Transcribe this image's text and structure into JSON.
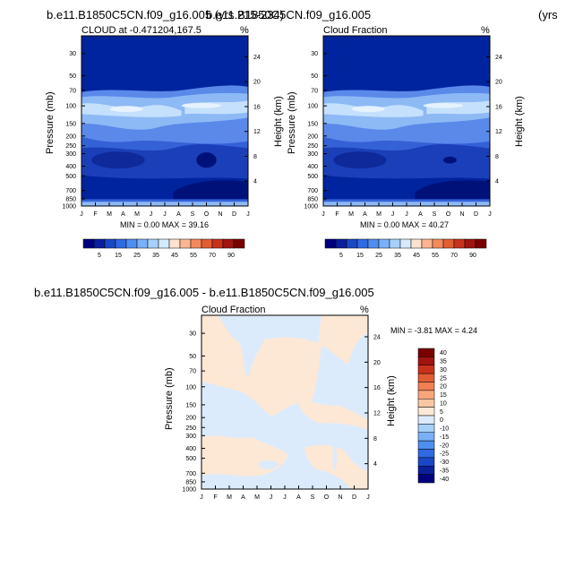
{
  "page": {
    "title_left": "b.e11.B1850C5CN.f09_g16.005 (yrs 215-234)",
    "title_mid": "b.e11.B1850C5CN.f09_g16.005",
    "title_right_fragment": "(yrs",
    "title_diff": "b.e11.B1850C5CN.f09_g16.005 - b.e11.B1850C5CN.f09_g16.005"
  },
  "colors": {
    "base_blue": "#00249e",
    "scale": [
      "#00007f",
      "#0b1f9c",
      "#1a47c6",
      "#2f6ae3",
      "#4f8ef0",
      "#79b0f7",
      "#a7d0fb",
      "#d6eafd",
      "#fde3cf",
      "#fbb590",
      "#f48a5c",
      "#e35d33",
      "#c8321c",
      "#a11410",
      "#7a0000"
    ],
    "diff": [
      "#00007f",
      "#0b1f9c",
      "#1a47c6",
      "#2f6ae3",
      "#4f8ef0",
      "#79b0f7",
      "#a7d0fb",
      "#dcebfb",
      "#fde8d6",
      "#fbc6a3",
      "#f9a57c",
      "#f27f52",
      "#e35d33",
      "#c8321c",
      "#a11410",
      "#7a0000"
    ]
  },
  "chart_data": [
    {
      "type": "contour",
      "title": "CLOUD at -0.471204,167.5",
      "units": "%",
      "xlabel": "",
      "ylabel": "Pressure (mb)",
      "ylabel_right": "Height (km)",
      "x_ticks": [
        "J",
        "F",
        "M",
        "A",
        "M",
        "J",
        "J",
        "A",
        "S",
        "O",
        "N",
        "D",
        "J"
      ],
      "y_ticks": [
        "30",
        "50",
        "70",
        "100",
        "150",
        "200",
        "250",
        "300",
        "400",
        "500",
        "700",
        "850",
        "1000"
      ],
      "y_right_ticks": [
        "24",
        "20",
        "16",
        "12",
        "8",
        "4"
      ],
      "stats": "MIN = 0.00 MAX = 39.16",
      "colorbar": {
        "labels": [
          "5",
          "15",
          "25",
          "35",
          "45",
          "55",
          "70",
          "90"
        ]
      }
    },
    {
      "type": "contour",
      "title": "Cloud Fraction",
      "units": "%",
      "xlabel": "",
      "ylabel": "Pressure (mb)",
      "ylabel_right": "Height (km)",
      "x_ticks": [
        "J",
        "F",
        "M",
        "A",
        "M",
        "J",
        "J",
        "A",
        "S",
        "O",
        "N",
        "D",
        "J"
      ],
      "y_ticks": [
        "30",
        "50",
        "70",
        "100",
        "150",
        "200",
        "250",
        "300",
        "400",
        "500",
        "700",
        "850",
        "1000"
      ],
      "y_right_ticks": [
        "24",
        "20",
        "16",
        "12",
        "8",
        "4"
      ],
      "stats": "MIN = 0.00 MAX = 40.27",
      "colorbar": {
        "labels": [
          "5",
          "15",
          "25",
          "35",
          "45",
          "55",
          "70",
          "90"
        ]
      }
    },
    {
      "type": "contour",
      "title": "Cloud Fraction",
      "units": "%",
      "xlabel": "",
      "ylabel": "Pressure (mb)",
      "ylabel_right": "Height (km)",
      "x_ticks": [
        "J",
        "F",
        "M",
        "A",
        "M",
        "J",
        "J",
        "A",
        "S",
        "O",
        "N",
        "D",
        "J"
      ],
      "y_ticks": [
        "30",
        "50",
        "70",
        "100",
        "150",
        "200",
        "250",
        "300",
        "400",
        "500",
        "700",
        "850",
        "1000"
      ],
      "y_right_ticks": [
        "24",
        "20",
        "16",
        "12",
        "8",
        "4"
      ],
      "stats": "MIN = -3.81 MAX = 4.24",
      "colorbar": {
        "labels": [
          "40",
          "35",
          "30",
          "25",
          "20",
          "15",
          "10",
          "5",
          "0",
          "-10",
          "-15",
          "-20",
          "-25",
          "-30",
          "-35",
          "-40"
        ]
      }
    }
  ]
}
